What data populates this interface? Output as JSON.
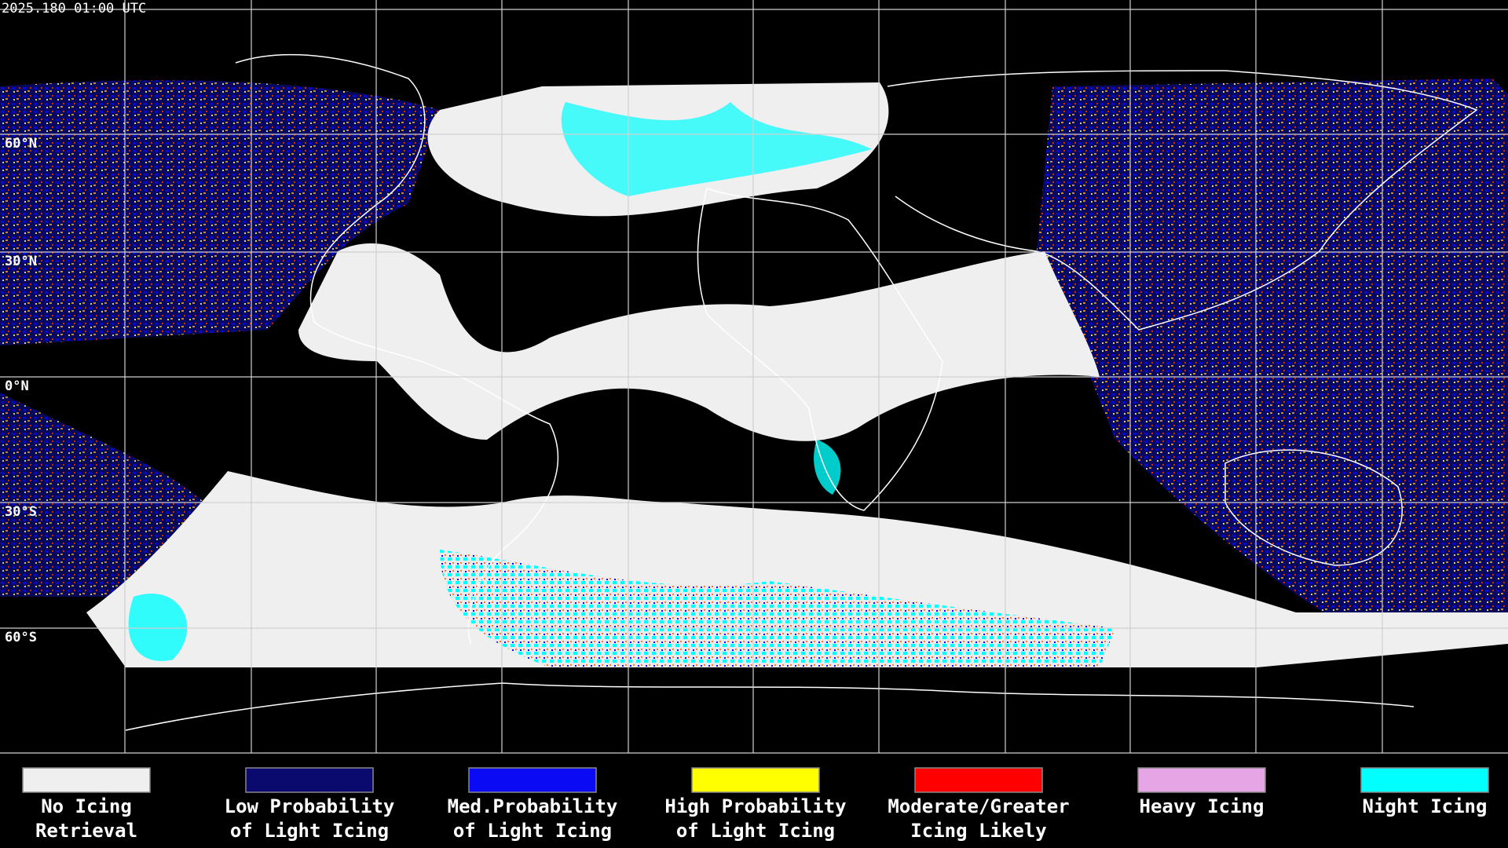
{
  "timestamp": "2025.180 01:00 UTC",
  "latitude_labels": [
    "60°N",
    "30°N",
    "0°N",
    "30°S",
    "60°S"
  ],
  "legend": [
    {
      "label_lines": [
        "No Icing",
        "Retrieval"
      ],
      "color": "#efefef"
    },
    {
      "label_lines": [
        "Low Probability",
        "of Light Icing"
      ],
      "color": "#0a0a6e"
    },
    {
      "label_lines": [
        "Med.Probability",
        "of Light Icing"
      ],
      "color": "#0a0af5"
    },
    {
      "label_lines": [
        "High Probability",
        "of Light Icing"
      ],
      "color": "#ffff00"
    },
    {
      "label_lines": [
        "Moderate/Greater",
        "Icing Likely"
      ],
      "color": "#ff0000"
    },
    {
      "label_lines": [
        "Heavy Icing"
      ],
      "color": "#e6a6e6"
    },
    {
      "label_lines": [
        "Night Icing"
      ],
      "color": "#00ffff"
    }
  ]
}
